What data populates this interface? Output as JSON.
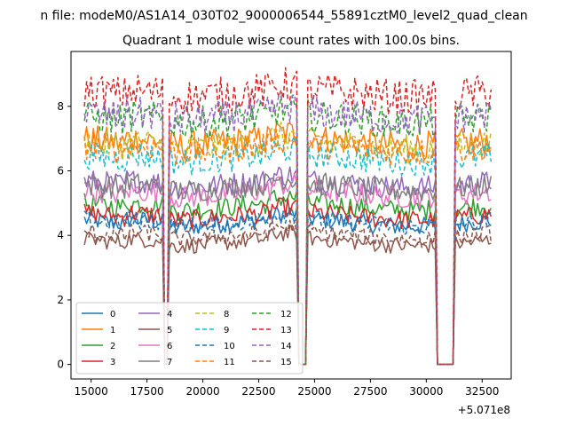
{
  "figure_header": "n file: modeM0/AS1A14_030T02_9000006544_55891cztM0_level2_quad_clean",
  "chart_data": {
    "type": "line",
    "title": "Quadrant 1 module wise count rates with 100.0s bins.",
    "xlabel": "",
    "ylabel": "",
    "x_offset_label": "+5.071e8",
    "xlim": [
      14100,
      33800
    ],
    "ylim": [
      -0.45,
      9.7
    ],
    "x_ticks": [
      15000,
      17500,
      20000,
      22500,
      25000,
      27500,
      30000,
      32500
    ],
    "x_tick_labels": [
      "15000",
      "17500",
      "20000",
      "22500",
      "25000",
      "27500",
      "30000",
      "32500"
    ],
    "y_ticks": [
      0,
      2,
      4,
      6,
      8
    ],
    "y_tick_labels": [
      "0",
      "2",
      "4",
      "6",
      "8"
    ],
    "grid": false,
    "legend_position": "lower-left",
    "time_range": [
      14700,
      32900
    ],
    "bin_seconds": 100,
    "gaps": [
      {
        "start": 18300,
        "end": 18400,
        "value": 0
      },
      {
        "start": 24300,
        "end": 24600,
        "value": 0
      },
      {
        "start": 30500,
        "end": 31200,
        "value": 0
      }
    ],
    "series": [
      {
        "name": "0",
        "color": "#1f77b4",
        "dashed": false,
        "mean": 4.4
      },
      {
        "name": "1",
        "color": "#ff7f0e",
        "dashed": false,
        "mean": 6.9
      },
      {
        "name": "2",
        "color": "#2ca02c",
        "dashed": false,
        "mean": 4.9
      },
      {
        "name": "3",
        "color": "#d62728",
        "dashed": false,
        "mean": 4.6
      },
      {
        "name": "4",
        "color": "#9467bd",
        "dashed": false,
        "mean": 5.6
      },
      {
        "name": "5",
        "color": "#8c564b",
        "dashed": false,
        "mean": 3.8
      },
      {
        "name": "6",
        "color": "#e377c2",
        "dashed": false,
        "mean": 5.3
      },
      {
        "name": "7",
        "color": "#7f7f7f",
        "dashed": false,
        "mean": 5.5
      },
      {
        "name": "8",
        "color": "#bcbd22",
        "dashed": true,
        "mean": 6.8
      },
      {
        "name": "9",
        "color": "#17becf",
        "dashed": true,
        "mean": 6.4
      },
      {
        "name": "10",
        "color": "#1f77b4",
        "dashed": true,
        "mean": 4.4
      },
      {
        "name": "11",
        "color": "#ff7f0e",
        "dashed": true,
        "mean": 6.7
      },
      {
        "name": "12",
        "color": "#2ca02c",
        "dashed": true,
        "mean": 7.6
      },
      {
        "name": "13",
        "color": "#d62728",
        "dashed": true,
        "mean": 8.4
      },
      {
        "name": "14",
        "color": "#9467bd",
        "dashed": true,
        "mean": 7.7
      },
      {
        "name": "15",
        "color": "#8c564b",
        "dashed": true,
        "mean": 4.0
      }
    ]
  }
}
